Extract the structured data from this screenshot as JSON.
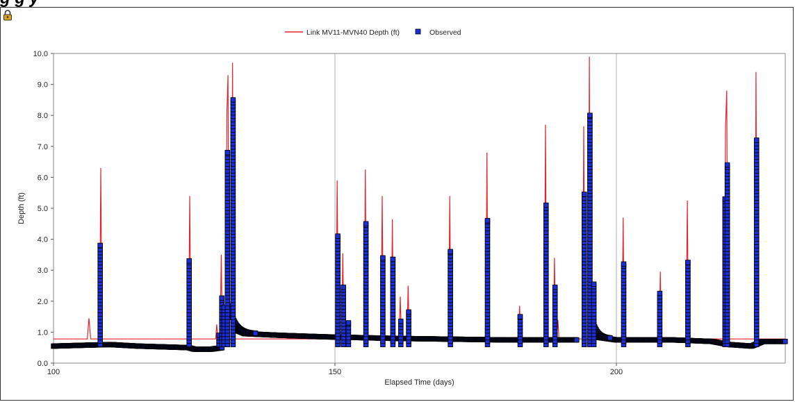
{
  "page": {
    "title_fragment": "g                                                                      g   y"
  },
  "icons": {
    "corner": "lock-icon"
  },
  "colors": {
    "model": "#e8212b",
    "observed_fill": "#1a2fd8",
    "observed_edge": "#000000",
    "grid": "#cccccc"
  },
  "chart_data": {
    "type": "line",
    "xlabel": "Elapsed Time (days)",
    "ylabel": "Depth (ft)",
    "xlim": [
      100,
      230
    ],
    "ylim": [
      0,
      10
    ],
    "x_ticks": [
      100,
      150,
      200
    ],
    "x_tick_labels": [
      "100",
      "150",
      "200"
    ],
    "y_ticks": [
      0,
      1,
      2,
      3,
      4,
      5,
      6,
      7,
      8,
      9,
      10
    ],
    "y_tick_labels": [
      "0.0",
      "1.0",
      "2.0",
      "3.0",
      "4.0",
      "5.0",
      "6.0",
      "7.0",
      "8.0",
      "9.0",
      "10.0"
    ],
    "grid": "vertical at x ticks",
    "legend_position": "top-center",
    "baseline": 0.78,
    "series": [
      {
        "name": "Link MV11-MVN40 Depth (ft)",
        "kind": "line",
        "color": "#e8212b",
        "points": [
          [
            100,
            0.78
          ],
          [
            106.0,
            0.78
          ],
          [
            106.3,
            1.45
          ],
          [
            106.6,
            0.78
          ],
          [
            108.2,
            0.78
          ],
          [
            108.4,
            6.3
          ],
          [
            108.6,
            0.78
          ],
          [
            124.0,
            0.78
          ],
          [
            124.2,
            5.4
          ],
          [
            124.4,
            0.78
          ],
          [
            128.8,
            0.78
          ],
          [
            129.0,
            1.25
          ],
          [
            129.2,
            0.78
          ],
          [
            129.6,
            0.78
          ],
          [
            129.8,
            3.5
          ],
          [
            130.0,
            0.78
          ],
          [
            130.6,
            0.78
          ],
          [
            130.8,
            8.1
          ],
          [
            131.0,
            9.3
          ],
          [
            131.2,
            0.78
          ],
          [
            131.6,
            0.78
          ],
          [
            131.8,
            9.7
          ],
          [
            132.0,
            0.78
          ],
          [
            150.2,
            0.78
          ],
          [
            150.4,
            5.9
          ],
          [
            150.6,
            0.78
          ],
          [
            151.2,
            0.78
          ],
          [
            151.4,
            3.55
          ],
          [
            151.6,
            0.78
          ],
          [
            155.2,
            0.78
          ],
          [
            155.4,
            6.25
          ],
          [
            155.6,
            0.78
          ],
          [
            158.2,
            0.78
          ],
          [
            158.4,
            5.4
          ],
          [
            158.6,
            0.78
          ],
          [
            160.0,
            0.78
          ],
          [
            160.2,
            4.65
          ],
          [
            160.4,
            0.78
          ],
          [
            161.4,
            0.78
          ],
          [
            161.6,
            2.15
          ],
          [
            161.8,
            0.78
          ],
          [
            162.8,
            0.78
          ],
          [
            163.0,
            2.5
          ],
          [
            163.2,
            0.78
          ],
          [
            170.2,
            0.78
          ],
          [
            170.4,
            5.4
          ],
          [
            170.6,
            0.78
          ],
          [
            176.8,
            0.78
          ],
          [
            177.0,
            6.8
          ],
          [
            177.2,
            0.78
          ],
          [
            182.6,
            0.78
          ],
          [
            182.8,
            1.85
          ],
          [
            183.0,
            0.78
          ],
          [
            187.2,
            0.78
          ],
          [
            187.4,
            7.7
          ],
          [
            187.6,
            0.78
          ],
          [
            188.8,
            0.78
          ],
          [
            189.0,
            3.4
          ],
          [
            189.2,
            0.78
          ],
          [
            189.4,
            0.78
          ],
          [
            189.6,
            1.4
          ],
          [
            189.8,
            0.78
          ],
          [
            194.0,
            0.78
          ],
          [
            194.2,
            7.65
          ],
          [
            194.4,
            0.78
          ],
          [
            195.0,
            0.78
          ],
          [
            195.2,
            9.9
          ],
          [
            195.4,
            0.78
          ],
          [
            201.0,
            0.78
          ],
          [
            201.2,
            4.7
          ],
          [
            201.4,
            0.78
          ],
          [
            207.6,
            0.78
          ],
          [
            207.8,
            2.95
          ],
          [
            208.0,
            0.78
          ],
          [
            212.4,
            0.78
          ],
          [
            212.6,
            5.25
          ],
          [
            212.8,
            0.78
          ],
          [
            219.2,
            0.78
          ],
          [
            219.4,
            7.65
          ],
          [
            219.6,
            8.8
          ],
          [
            219.8,
            0.78
          ],
          [
            224.6,
            0.78
          ],
          [
            224.8,
            9.4
          ],
          [
            225.0,
            0.78
          ],
          [
            230,
            0.78
          ]
        ]
      },
      {
        "name": "Observed",
        "kind": "scatter",
        "base_segments": [
          [
            [
              100,
              0.55
            ],
            [
              110,
              0.6
            ],
            [
              115,
              0.55
            ],
            [
              124,
              0.5
            ],
            [
              125,
              0.45
            ],
            [
              128,
              0.45
            ],
            [
              130,
              0.5
            ]
          ],
          [
            [
              132,
              1.1
            ],
            [
              134,
              0.95
            ],
            [
              140,
              0.9
            ],
            [
              148,
              0.85
            ],
            [
              160,
              0.8
            ],
            [
              180,
              0.75
            ],
            [
              193,
              0.75
            ]
          ],
          [
            [
              196,
              0.85
            ],
            [
              200,
              0.75
            ],
            [
              210,
              0.75
            ],
            [
              217,
              0.7
            ],
            [
              220,
              0.6
            ],
            [
              224,
              0.55
            ],
            [
              226,
              0.7
            ],
            [
              230,
              0.7
            ]
          ]
        ],
        "spikes": [
          [
            108.3,
            3.8
          ],
          [
            124.1,
            3.3
          ],
          [
            129.4,
            0.9
          ],
          [
            129.9,
            2.1
          ],
          [
            130.3,
            1.8
          ],
          [
            130.9,
            6.8
          ],
          [
            131.9,
            8.5
          ],
          [
            150.5,
            4.1
          ],
          [
            151.5,
            2.45
          ],
          [
            152.4,
            1.3
          ],
          [
            155.5,
            4.5
          ],
          [
            158.5,
            3.4
          ],
          [
            160.3,
            3.35
          ],
          [
            161.7,
            1.35
          ],
          [
            163.1,
            1.65
          ],
          [
            170.5,
            3.6
          ],
          [
            177.1,
            4.6
          ],
          [
            182.9,
            1.5
          ],
          [
            187.5,
            5.1
          ],
          [
            189.1,
            2.45
          ],
          [
            194.3,
            5.45
          ],
          [
            195.3,
            8.0
          ],
          [
            196.0,
            2.55
          ],
          [
            201.3,
            3.2
          ],
          [
            207.7,
            2.25
          ],
          [
            212.7,
            3.25
          ],
          [
            219.3,
            5.3
          ],
          [
            219.7,
            6.4
          ],
          [
            224.9,
            7.2
          ]
        ]
      }
    ]
  }
}
